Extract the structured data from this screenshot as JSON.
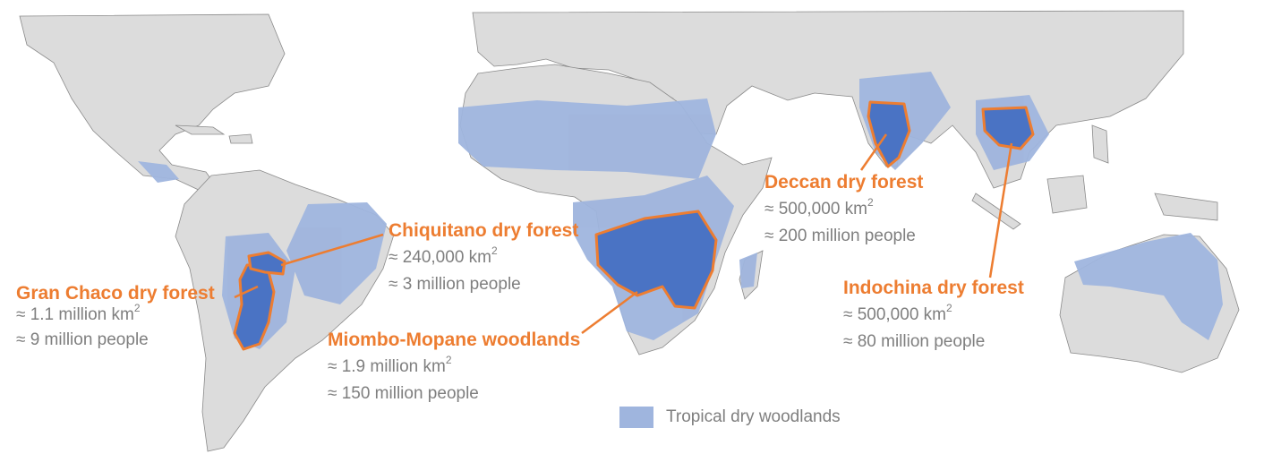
{
  "colors": {
    "land": "#dcdcdc",
    "border": "#8a8a8a",
    "dry_woodlands": "#9fb5de",
    "highlight_region": "#4a73c4",
    "accent": "#ED7D31",
    "stat_text": "#7f7f7f"
  },
  "regions": [
    {
      "id": "gran-chaco",
      "name": "Gran Chaco dry forest",
      "area_prefix": "≈ 1.1 million km",
      "population": "≈ 9 million people"
    },
    {
      "id": "chiquitano",
      "name": "Chiquitano dry forest",
      "area_prefix": "≈ 240,000 km",
      "population": "≈ 3 million people"
    },
    {
      "id": "miombo-mopane",
      "name": "Miombo-Mopane woodlands",
      "area_prefix": "≈ 1.9 million km",
      "population": "≈ 150 million people"
    },
    {
      "id": "deccan",
      "name": "Deccan dry forest",
      "area_prefix": "≈ 500,000 km",
      "population": "≈ 200 million people"
    },
    {
      "id": "indochina",
      "name": "Indochina dry forest",
      "area_prefix": "≈ 500,000 km",
      "population": "≈ 80 million people"
    }
  ],
  "area_unit_superscript": "2",
  "legend": {
    "label": "Tropical dry woodlands"
  }
}
